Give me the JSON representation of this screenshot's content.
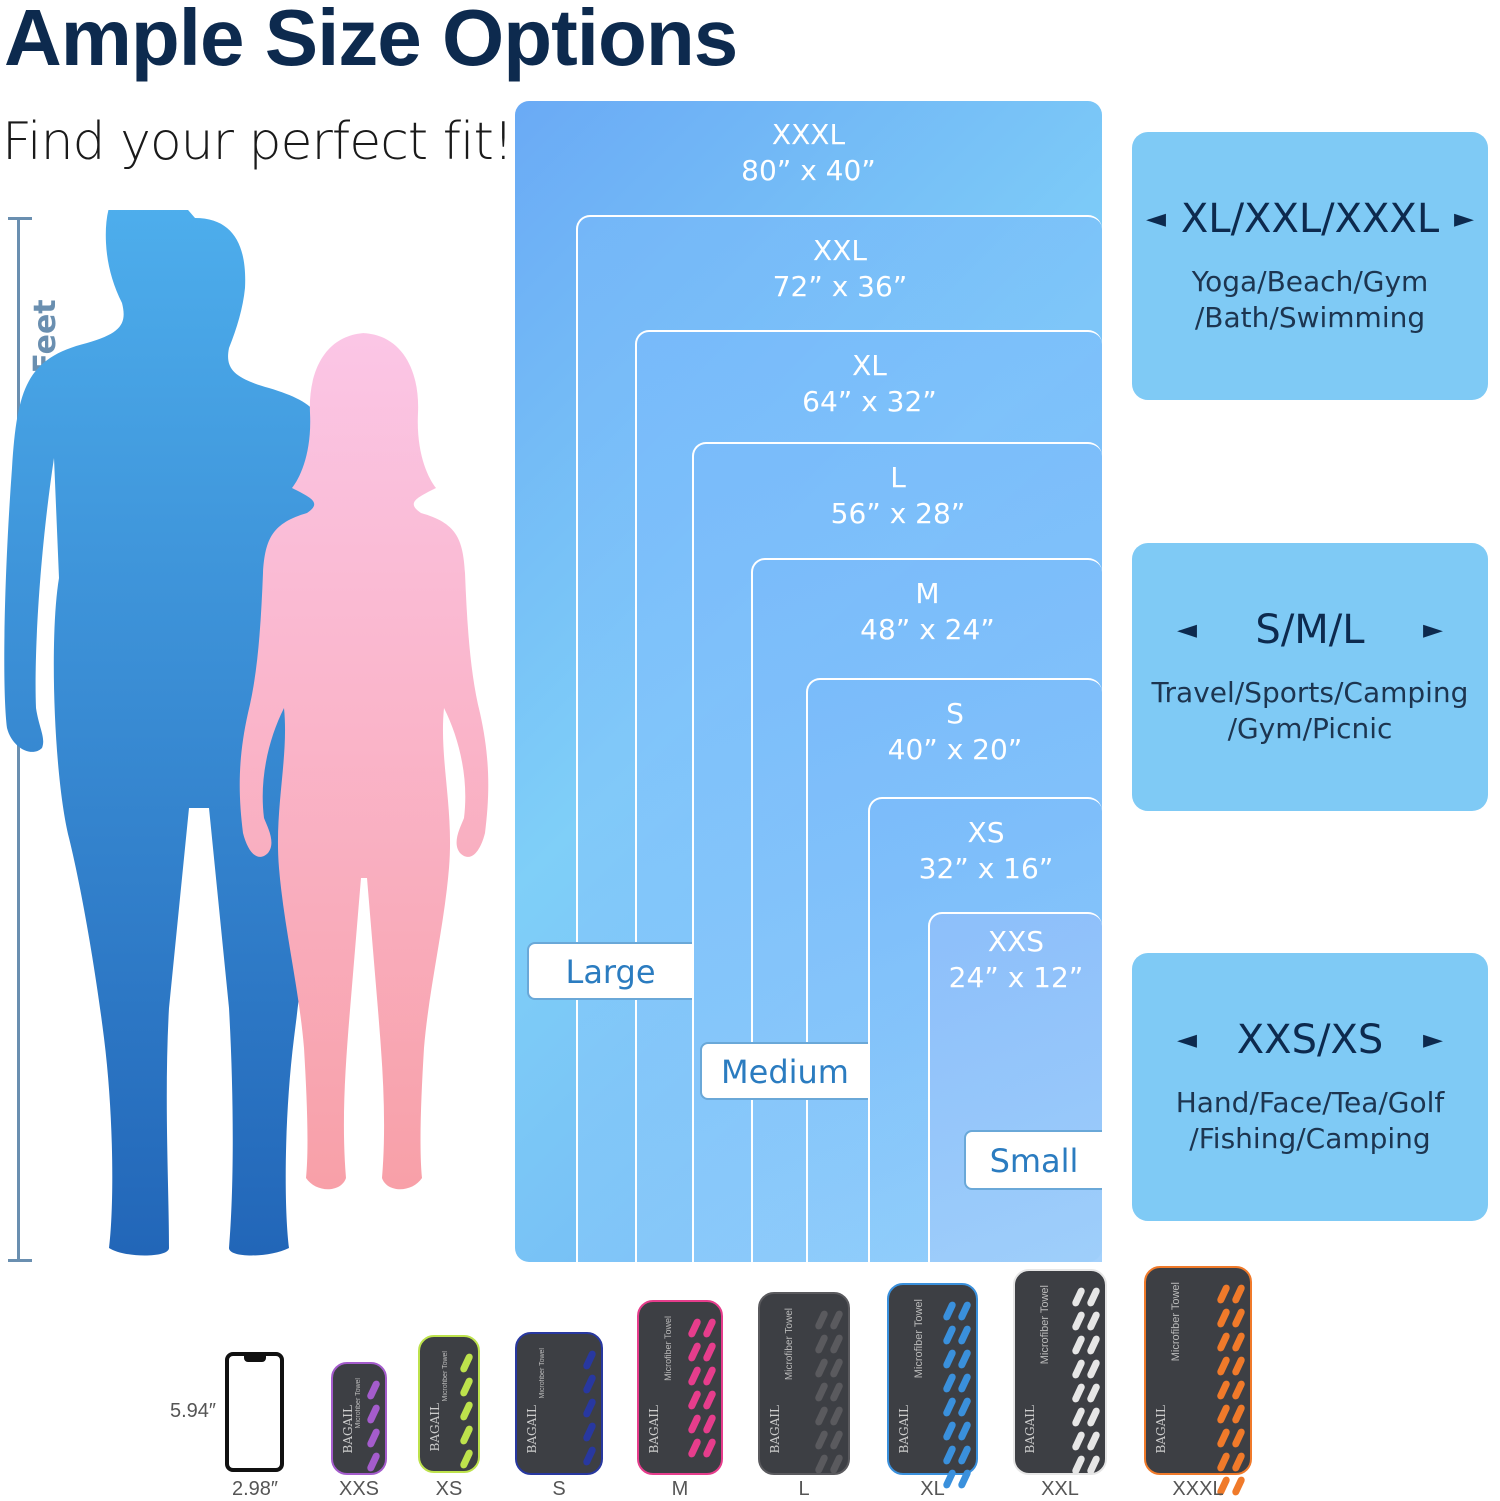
{
  "title": "Ample Size Options",
  "subtitle": "Find your perfect fit!",
  "height_label": "6 Feet",
  "sizes": [
    {
      "name": "XXXL",
      "dims": "80”  x 40”"
    },
    {
      "name": "XXL",
      "dims": "72”  x 36”"
    },
    {
      "name": "XL",
      "dims": "64”  x 32”"
    },
    {
      "name": "L",
      "dims": "56”  x 28”"
    },
    {
      "name": "M",
      "dims": "48”  x 24”"
    },
    {
      "name": "S",
      "dims": "40”  x 20”"
    },
    {
      "name": "XS",
      "dims": "32”  x 16”"
    },
    {
      "name": "XXS",
      "dims": "24”  x 12”"
    }
  ],
  "groups": {
    "large": "Large",
    "medium": "Medium",
    "small": "Small"
  },
  "panels": [
    {
      "heading": "XL/XXL/XXXL",
      "uses": [
        "Yoga/Beach/Gym",
        "/Bath/Swimming"
      ]
    },
    {
      "heading": "S/M/L",
      "uses": [
        "Travel/Sports/Camping",
        "/Gym/Picnic"
      ]
    },
    {
      "heading": "XXS/XS",
      "uses": [
        "Hand/Face/Tea/Golf",
        "/Fishing/Camping"
      ]
    }
  ],
  "arrows": {
    "left": "◄",
    "right": "►"
  },
  "phone": {
    "height": "5.94″",
    "width": "2.98″"
  },
  "cases": [
    {
      "label": "XXS",
      "accent": "#a45ccc"
    },
    {
      "label": "XS",
      "accent": "#bde24c"
    },
    {
      "label": "S",
      "accent": "#2838a0"
    },
    {
      "label": "M",
      "accent": "#e63d8c"
    },
    {
      "label": "L",
      "accent": "#5a5a5e"
    },
    {
      "label": "XL",
      "accent": "#3a90dc"
    },
    {
      "label": "XXL",
      "accent": "#e6e6e6"
    },
    {
      "label": "XXXL",
      "accent": "#f07a2a"
    }
  ],
  "case_text": {
    "brand": "BAGAIL",
    "product": "Microfiber Towel"
  },
  "colors": {
    "man": "#3a8ed8",
    "woman": "#f9a9bf",
    "panel": "#7fcaf5",
    "title": "#0d2a4e"
  }
}
